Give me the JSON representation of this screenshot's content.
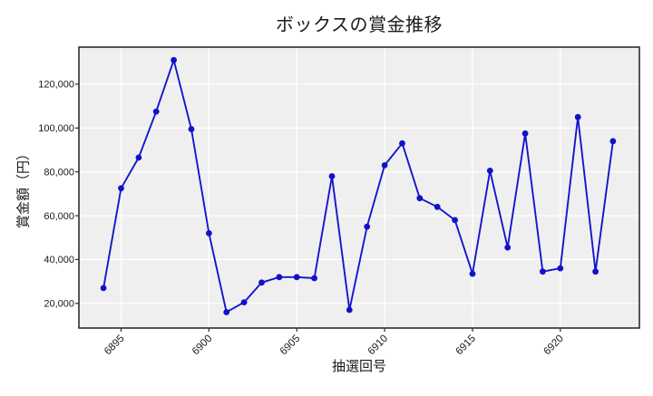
{
  "chart_data": {
    "type": "line",
    "title": "ボックスの賞金推移",
    "xlabel": "抽選回号",
    "ylabel": "賞金額（円）",
    "x": [
      6894,
      6895,
      6896,
      6897,
      6898,
      6899,
      6900,
      6901,
      6902,
      6903,
      6904,
      6905,
      6906,
      6907,
      6908,
      6909,
      6910,
      6911,
      6912,
      6913,
      6914,
      6915,
      6916,
      6917,
      6918,
      6919,
      6920,
      6921,
      6922,
      6923
    ],
    "values": [
      27000,
      72500,
      86500,
      107500,
      131000,
      99500,
      52000,
      16000,
      20500,
      29500,
      32000,
      32000,
      31500,
      78000,
      17000,
      55000,
      83000,
      93000,
      68000,
      64000,
      58000,
      33500,
      80500,
      45500,
      97500,
      34500,
      36000,
      105000,
      34500,
      94000
    ],
    "x_ticks": [
      6895,
      6900,
      6905,
      6910,
      6915,
      6920
    ],
    "x_tick_labels": [
      "6895",
      "6900",
      "6905",
      "6910",
      "6915",
      "6920"
    ],
    "y_ticks": [
      20000,
      40000,
      60000,
      80000,
      100000,
      120000
    ],
    "y_tick_labels": [
      "20,000",
      "40,000",
      "60,000",
      "80,000",
      "100,000",
      "120,000"
    ],
    "xlim": [
      6892.6,
      6924.5
    ],
    "ylim": [
      8750,
      136900
    ],
    "grid": true,
    "legend_position": "none",
    "marker": "circle",
    "colors": {
      "line": "#1515cd",
      "marker": "#1111cb",
      "plot_bg": "#efefef",
      "grid": "#ffffff",
      "frame": "#2d2d2d",
      "tick": "#2d2d2d",
      "text": "#1a1a1a",
      "figure_bg": "#ffffff"
    }
  }
}
